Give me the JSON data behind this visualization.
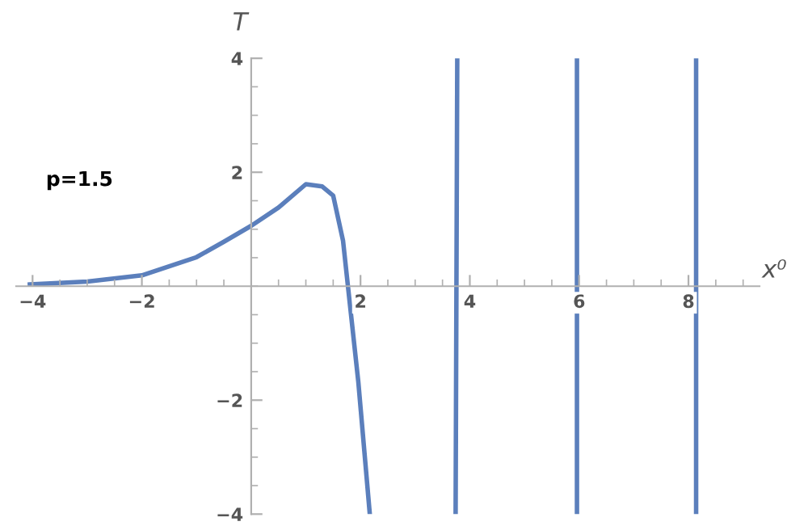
{
  "chart_data": {
    "type": "line",
    "xlabel": "x⁰",
    "ylabel": "T",
    "annotations": [
      "p=1.5"
    ],
    "series": [
      {
        "color": "#5b7fbc",
        "x": [
          -4.05,
          -3,
          -2,
          -1,
          -0.5,
          0,
          0.5,
          1.0,
          1.3,
          1.5,
          1.68,
          1.77,
          1.96,
          2.17
        ],
        "values": [
          0.03,
          0.08,
          0.19,
          0.51,
          0.78,
          1.06,
          1.38,
          1.79,
          1.75,
          1.59,
          0.8,
          0,
          -1.68,
          -4.0
        ]
      },
      {
        "color": "#5b7fbc",
        "x": [
          3.77,
          3.74
        ],
        "values": [
          4,
          -4
        ]
      },
      {
        "color": "#5b7fbc",
        "x": [
          5.96,
          5.96
        ],
        "values": [
          4,
          -4
        ]
      },
      {
        "color": "#5b7fbc",
        "x": [
          8.14,
          8.14
        ],
        "values": [
          4,
          -4
        ]
      }
    ],
    "xlim": [
      -4.3,
      9.3
    ],
    "ylim": [
      -4,
      4
    ],
    "xticks": [
      {
        "value": -4,
        "label": "−4"
      },
      {
        "value": -2,
        "label": "−2"
      },
      2,
      4,
      6,
      8
    ],
    "yticks": [
      {
        "value": -4,
        "label": "−4"
      },
      {
        "value": -2,
        "label": "−2"
      },
      2,
      4
    ],
    "grid": false,
    "legend": false,
    "marker": "none",
    "line_style": "solid"
  }
}
